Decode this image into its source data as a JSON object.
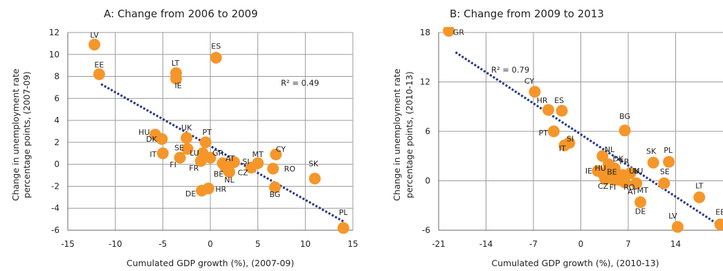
{
  "colors": {
    "point": "#f5962a",
    "trend": "#2a3a86",
    "grid": "#9a9a9a",
    "axis": "#666666"
  },
  "chart_data": [
    {
      "type": "scatter",
      "title": "A: Change from 2006 to 2009",
      "xlabel": "Cumulated GDP growth (%), (2007-09)",
      "ylabel": [
        "Change in unemployment rate",
        "percentage points, (2007-09)"
      ],
      "xlim": [
        -15,
        15
      ],
      "ylim": [
        -6,
        12
      ],
      "xticks": [
        -15,
        -10,
        -5,
        0,
        5,
        10,
        15
      ],
      "yticks": [
        -6,
        -4,
        -2,
        0,
        2,
        4,
        6,
        8,
        10,
        12
      ],
      "grid": true,
      "r2_label": "R² = 0.49",
      "trend": {
        "x1": -11.5,
        "y1": 7.3,
        "x2": 14.0,
        "y2": -5.2
      },
      "points": [
        {
          "label": "LV",
          "x": -12.2,
          "y": 10.9
        },
        {
          "label": "EE",
          "x": -11.7,
          "y": 8.2
        },
        {
          "label": "LT",
          "x": -3.6,
          "y": 8.3
        },
        {
          "label": "IE",
          "x": -3.6,
          "y": 7.8
        },
        {
          "label": "ES",
          "x": 0.6,
          "y": 9.7
        },
        {
          "label": "HU",
          "x": -5.8,
          "y": 2.7
        },
        {
          "label": "DK",
          "x": -5.1,
          "y": 2.3
        },
        {
          "label": "UK",
          "x": -2.5,
          "y": 2.4
        },
        {
          "label": "PT",
          "x": -0.5,
          "y": 2.0
        },
        {
          "label": "IT",
          "x": -5.0,
          "y": 1.0
        },
        {
          "label": "SE",
          "x": -2.4,
          "y": 1.4
        },
        {
          "label": "FI",
          "x": -3.2,
          "y": 0.6
        },
        {
          "label": "LU",
          "x": -0.8,
          "y": 1.0
        },
        {
          "label": "GR",
          "x": 0.0,
          "y": 0.6
        },
        {
          "label": "AT",
          "x": 1.3,
          "y": 0.1
        },
        {
          "label": "FR",
          "x": -1.0,
          "y": 0.3
        },
        {
          "label": "BE",
          "x": 1.6,
          "y": -0.3
        },
        {
          "label": "NL",
          "x": 2.0,
          "y": -0.7
        },
        {
          "label": "SI",
          "x": 2.5,
          "y": 0.2
        },
        {
          "label": "MT",
          "x": 5.0,
          "y": 0.1
        },
        {
          "label": "CZ",
          "x": 4.3,
          "y": -0.3
        },
        {
          "label": "CY",
          "x": 6.9,
          "y": 0.9
        },
        {
          "label": "RO",
          "x": 6.6,
          "y": -0.4
        },
        {
          "label": "SK",
          "x": 11.0,
          "y": -1.3
        },
        {
          "label": "DE",
          "x": -0.9,
          "y": -2.4
        },
        {
          "label": "HR",
          "x": -0.2,
          "y": -2.2
        },
        {
          "label": "BG",
          "x": 6.8,
          "y": -2.1
        },
        {
          "label": "PL",
          "x": 14.0,
          "y": -5.8
        }
      ]
    },
    {
      "type": "scatter",
      "title": "B: Change from 2009 to 2013",
      "xlabel": "Cumulated GDP growth (%), (2010-13)",
      "ylabel": [
        "Change in unemployment rate",
        "percentage points, (2010-13)"
      ],
      "xlim": [
        -21,
        21
      ],
      "ylim": [
        -6,
        18
      ],
      "xticks": [
        -21,
        -14,
        -7,
        0,
        7,
        14
      ],
      "yticks": [
        -6,
        0,
        6,
        12,
        18
      ],
      "grid": true,
      "r2_label": "R² = 0.79",
      "trend": {
        "x1": -18.5,
        "y1": 15.6,
        "x2": 21.0,
        "y2": -5.7
      },
      "points": [
        {
          "label": "GR",
          "x": -19.5,
          "y": 18.2
        },
        {
          "label": "CY",
          "x": -6.8,
          "y": 10.8
        },
        {
          "label": "HR",
          "x": -4.8,
          "y": 8.6
        },
        {
          "label": "ES",
          "x": -2.8,
          "y": 8.5
        },
        {
          "label": "PT",
          "x": -4.0,
          "y": 6.0
        },
        {
          "label": "SI",
          "x": -2.4,
          "y": 4.3
        },
        {
          "label": "IT",
          "x": -1.7,
          "y": 4.6
        },
        {
          "label": "BG",
          "x": 6.5,
          "y": 6.1
        },
        {
          "label": "NL",
          "x": 3.2,
          "y": 3.0
        },
        {
          "label": "DK",
          "x": 4.1,
          "y": 2.0
        },
        {
          "label": "IE",
          "x": 2.5,
          "y": 1.2
        },
        {
          "label": "HU",
          "x": 3.2,
          "y": 0.9
        },
        {
          "label": "FR",
          "x": 5.0,
          "y": 1.5
        },
        {
          "label": "BE",
          "x": 4.8,
          "y": 1.0
        },
        {
          "label": "UK",
          "x": 6.2,
          "y": 0.7
        },
        {
          "label": "LU",
          "x": 7.3,
          "y": 0.9
        },
        {
          "label": "CZ",
          "x": 3.6,
          "y": 0.2
        },
        {
          "label": "FI",
          "x": 4.9,
          "y": 0.1
        },
        {
          "label": "RO",
          "x": 5.7,
          "y": 0.1
        },
        {
          "label": "AT",
          "x": 6.5,
          "y": -0.2
        },
        {
          "label": "MT",
          "x": 8.2,
          "y": -0.3
        },
        {
          "label": "SK",
          "x": 10.7,
          "y": 2.2
        },
        {
          "label": "PL",
          "x": 13.0,
          "y": 2.3
        },
        {
          "label": "SE",
          "x": 12.3,
          "y": -0.3
        },
        {
          "label": "DE",
          "x": 8.8,
          "y": -2.6
        },
        {
          "label": "LT",
          "x": 17.5,
          "y": -2.0
        },
        {
          "label": "LV",
          "x": 14.3,
          "y": -5.6
        },
        {
          "label": "EE",
          "x": 20.6,
          "y": -5.3
        }
      ]
    }
  ]
}
